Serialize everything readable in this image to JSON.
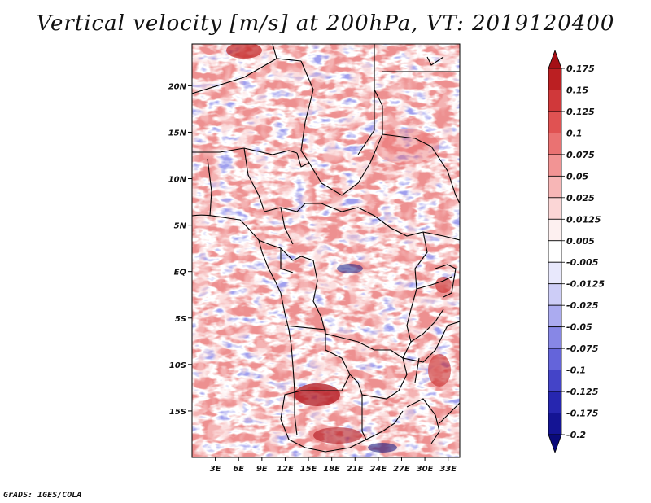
{
  "title": "Vertical velocity [m/s] at 200hPa, VT: 2019120400",
  "footer": "GrADS: IGES/COLA",
  "map": {
    "region": "Central Africa",
    "variable": "Vertical velocity",
    "units": "m/s",
    "level": "200hPa",
    "valid_time": "2019120400",
    "lon_range": [
      0,
      34.5
    ],
    "lat_range": [
      -20,
      24.5
    ],
    "lon_ticks": [
      "3E",
      "6E",
      "9E",
      "12E",
      "15E",
      "18E",
      "21E",
      "24E",
      "27E",
      "30E",
      "33E"
    ],
    "lat_ticks": [
      "20N",
      "15N",
      "10N",
      "5N",
      "EQ",
      "5S",
      "10S",
      "15S"
    ]
  },
  "colorbar": {
    "labels": [
      "0.175",
      "0.15",
      "0.125",
      "0.1",
      "0.075",
      "0.05",
      "0.025",
      "0.0125",
      "0.005",
      "-0.005",
      "-0.0125",
      "-0.025",
      "-0.05",
      "-0.075",
      "-0.1",
      "-0.125",
      "-0.175",
      "-0.2"
    ],
    "colors": [
      "#a50f15",
      "#bb1f22",
      "#d0383a",
      "#e05252",
      "#ea7272",
      "#f29494",
      "#f7b6b6",
      "#fbd6d6",
      "#fdf0f0",
      "#ffffff",
      "#e8e8fc",
      "#cdcdf7",
      "#ababf0",
      "#8787e6",
      "#6464da",
      "#4444c8",
      "#2626b0",
      "#141494",
      "#0a0a7a"
    ]
  }
}
